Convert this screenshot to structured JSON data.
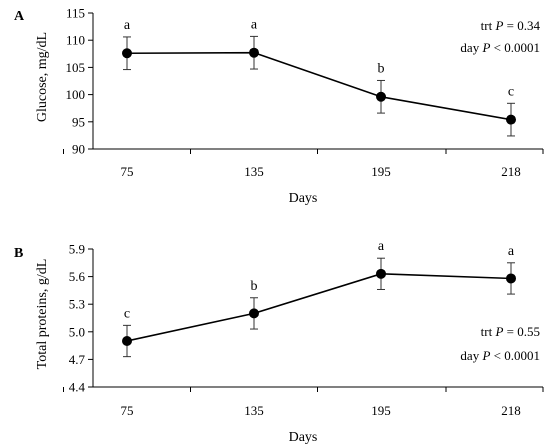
{
  "chart_data": [
    {
      "panel": "A",
      "type": "line",
      "ylabel": "Glucose, mg/dL",
      "xlabel": "Days",
      "categories": [
        "75",
        "135",
        "195",
        "218"
      ],
      "values": [
        107.6,
        107.7,
        99.6,
        95.4
      ],
      "errors": [
        3.0,
        3.0,
        3.0,
        3.0
      ],
      "letters": [
        "a",
        "a",
        "b",
        "c"
      ],
      "ylim": [
        90,
        115
      ],
      "yticks": [
        "90",
        "95",
        "100",
        "105",
        "110",
        "115"
      ],
      "stats": [
        {
          "prefix": "trt ",
          "p": "P",
          "rest": " = 0.34"
        },
        {
          "prefix": "day ",
          "p": "P",
          "rest": " < 0.0001"
        }
      ],
      "stats_position": "top-right"
    },
    {
      "panel": "B",
      "type": "line",
      "ylabel": "Total proteins, g/dL",
      "xlabel": "Days",
      "categories": [
        "75",
        "135",
        "195",
        "218"
      ],
      "values": [
        4.9,
        5.2,
        5.63,
        5.58
      ],
      "errors": [
        0.17,
        0.17,
        0.17,
        0.17
      ],
      "letters": [
        "c",
        "b",
        "a",
        "a"
      ],
      "ylim": [
        4.4,
        5.9
      ],
      "yticks": [
        "4.4",
        "4.7",
        "5.0",
        "5.3",
        "5.6",
        "5.9"
      ],
      "stats": [
        {
          "prefix": "trt ",
          "p": "P",
          "rest": " = 0.55"
        },
        {
          "prefix": "day ",
          "p": "P",
          "rest": " < 0.0001"
        }
      ],
      "stats_position": "bottom-right"
    }
  ]
}
